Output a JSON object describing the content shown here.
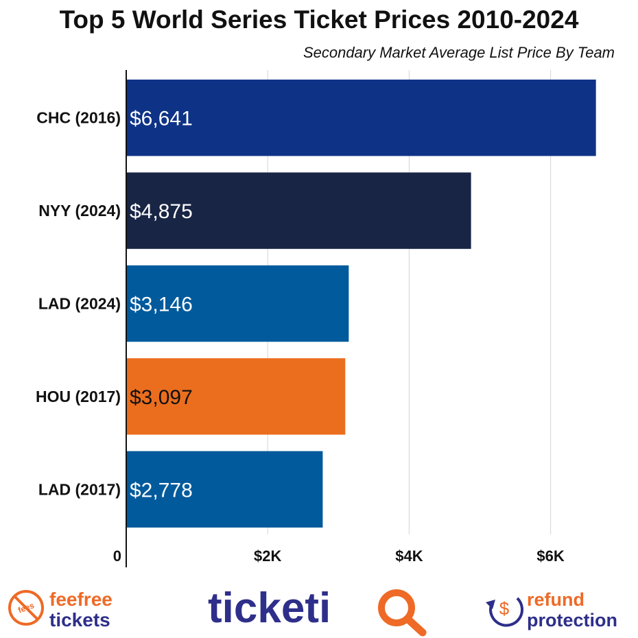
{
  "chart_data": {
    "type": "bar",
    "orientation": "horizontal",
    "title": "Top 5 World Series Ticket Prices 2010-2024",
    "subtitle": "Secondary Market Average List Price By Team",
    "categories": [
      "CHC (2016)",
      "NYY (2024)",
      "LAD (2024)",
      "HOU (2017)",
      "LAD (2017)"
    ],
    "values": [
      6641,
      4875,
      3146,
      3097,
      2778
    ],
    "value_labels": [
      "$6,641",
      "$4,875",
      "$3,146",
      "$3,097",
      "$2,778"
    ],
    "bar_colors": [
      "#0e3286",
      "#182545",
      "#005a9c",
      "#eb6e1f",
      "#005a9c"
    ],
    "value_label_colors": [
      "#ffffff",
      "#ffffff",
      "#ffffff",
      "#111111",
      "#ffffff"
    ],
    "xlim": [
      0,
      7000
    ],
    "xticks": [
      0,
      2000,
      4000,
      6000
    ],
    "xtick_labels": [
      "0",
      "$2K",
      "$4K",
      "$6K"
    ],
    "grid": true
  },
  "footer": {
    "left_logo": {
      "icon": "no-fees-icon",
      "badge_text": "fees",
      "line1": "feefree",
      "line2": "tickets"
    },
    "center_logo": {
      "text_main": "ticketi",
      "text_accent": "Q"
    },
    "right_logo": {
      "icon": "dollar-refresh-icon",
      "symbol": "$",
      "line1": "refund",
      "line2": "protection"
    },
    "colors": {
      "orange": "#ee6a26",
      "navy": "#2e2f8a"
    }
  }
}
